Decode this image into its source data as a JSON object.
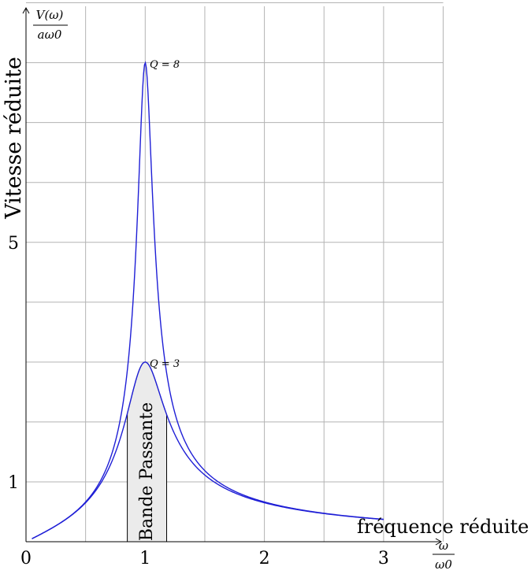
{
  "chart_data": {
    "type": "line",
    "xlabel": "fréquence réduite",
    "ylabel": "Vitesse réduite",
    "x_unit_top": "ω",
    "x_unit_bottom": "ω0",
    "y_unit_top": "V(ω)",
    "y_unit_bottom": "aω0",
    "xlim": [
      0,
      3.5
    ],
    "ylim": [
      0,
      9
    ],
    "grid": true,
    "x_ticks": [
      {
        "value": 0,
        "label": "0"
      },
      {
        "value": 1,
        "label": "1"
      },
      {
        "value": 2,
        "label": "2"
      },
      {
        "value": 3,
        "label": "3"
      }
    ],
    "y_ticks": [
      {
        "value": 1,
        "label": "1"
      },
      {
        "value": 5,
        "label": "5"
      }
    ],
    "series": [
      {
        "name": "Q = 8",
        "Q": 8,
        "x_range": [
          0.05,
          3
        ],
        "peak": [
          1,
          8
        ],
        "color": "#1f1fd6"
      },
      {
        "name": "Q = 3",
        "Q": 3,
        "x_range": [
          0.05,
          3
        ],
        "peak": [
          1,
          3
        ],
        "color": "#1f1fd6"
      }
    ],
    "shaded_region": {
      "label": "Bande Passante",
      "x_range": [
        0.85,
        1.18
      ],
      "follows_series": "Q = 3",
      "color": "#ebebeb"
    },
    "annotations": [
      {
        "text": "Q = 8",
        "x": 1,
        "y": 8
      },
      {
        "text": "Q = 3",
        "x": 1,
        "y": 3
      }
    ]
  }
}
